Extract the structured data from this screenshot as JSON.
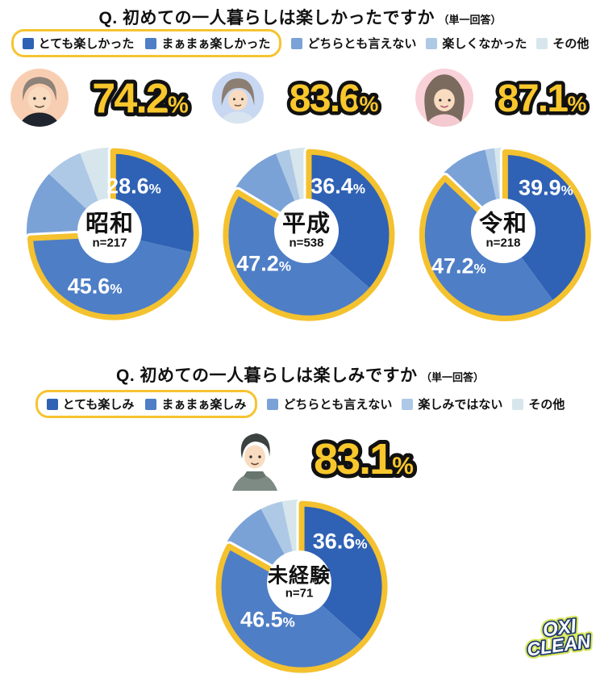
{
  "page": {
    "background": "#ffffff"
  },
  "colors": {
    "slice_colors": [
      "#2F62B5",
      "#4E7EC6",
      "#7AA2D6",
      "#AEC9E6",
      "#D7E6EC"
    ],
    "highlight_ring": "#F4C12F",
    "legend_box_border": "#F5C431",
    "big_percent_fill": "#F9C72C",
    "big_percent_outline": "#111111",
    "slice_label_color": "#FFFFFF",
    "avatar_bg": {
      "showa": "#F8CEB2",
      "heisei": "#C9D8F2",
      "reiwa": "#F9D1D9"
    }
  },
  "section_past": {
    "question": "Q. 初めての一人暮らしは楽しかったですか",
    "answer_type_note": "（単一回答）",
    "legend": [
      "とても楽しかった",
      "まぁまぁ楽しかった",
      "どちらとも言えない",
      "楽しくなかった",
      "その他"
    ]
  },
  "section_future": {
    "question": "Q. 初めての一人暮らしは楽しみですか",
    "answer_type_note": "（単一回答）",
    "legend": [
      "とても楽しみ",
      "まぁまぁ楽しみ",
      "どちらとも言えない",
      "楽しみではない",
      "その他"
    ]
  },
  "chart_data": [
    {
      "type": "pie",
      "group": "昭和",
      "sample_label": "n=217",
      "highlight_total": {
        "num": "74.2",
        "sign": "%"
      },
      "categories": [
        "とても楽しかった",
        "まぁまぁ楽しかった",
        "どちらとも言えない",
        "楽しくなかった",
        "その他"
      ],
      "values_pct": [
        28.6,
        45.6,
        12.8,
        7.2,
        5.8
      ],
      "value_is_estimated": [
        false,
        false,
        true,
        true,
        true
      ],
      "labels": {
        "a": {
          "num": "28.6",
          "sign": "%"
        },
        "b": {
          "num": "45.6",
          "sign": "%"
        }
      },
      "highlight_slices": [
        0,
        1
      ],
      "start_angle_deg": 0,
      "direction": "clockwise",
      "legend_position": "top"
    },
    {
      "type": "pie",
      "group": "平成",
      "sample_label": "n=538",
      "highlight_total": {
        "num": "83.6",
        "sign": "%"
      },
      "categories": [
        "とても楽しかった",
        "まぁまぁ楽しかった",
        "どちらとも言えない",
        "楽しくなかった",
        "その他"
      ],
      "values_pct": [
        36.4,
        47.2,
        10.4,
        2.7,
        3.3
      ],
      "value_is_estimated": [
        false,
        false,
        true,
        true,
        true
      ],
      "labels": {
        "a": {
          "num": "36.4",
          "sign": "%"
        },
        "b": {
          "num": "47.2",
          "sign": "%"
        }
      },
      "highlight_slices": [
        0,
        1
      ],
      "start_angle_deg": 0,
      "direction": "clockwise",
      "legend_position": "top"
    },
    {
      "type": "pie",
      "group": "令和",
      "sample_label": "n=218",
      "highlight_total": {
        "num": "87.1",
        "sign": "%"
      },
      "categories": [
        "とても楽しかった",
        "まぁまぁ楽しかった",
        "どちらとも言えない",
        "楽しくなかった",
        "その他"
      ],
      "values_pct": [
        39.9,
        47.2,
        9.4,
        1.8,
        1.7
      ],
      "value_is_estimated": [
        false,
        false,
        true,
        true,
        true
      ],
      "labels": {
        "a": {
          "num": "39.9",
          "sign": "%"
        },
        "b": {
          "num": "47.2",
          "sign": "%"
        }
      },
      "highlight_slices": [
        0,
        1
      ],
      "start_angle_deg": 0,
      "direction": "clockwise",
      "legend_position": "top"
    },
    {
      "type": "pie",
      "group": "未経験",
      "sample_label": "n=71",
      "highlight_total": {
        "num": "83.1",
        "sign": "%"
      },
      "categories": [
        "とても楽しみ",
        "まぁまぁ楽しみ",
        "どちらとも言えない",
        "楽しみではない",
        "その他"
      ],
      "values_pct": [
        36.6,
        46.5,
        9.3,
        4.3,
        3.3
      ],
      "value_is_estimated": [
        false,
        false,
        true,
        true,
        true
      ],
      "labels": {
        "a": {
          "num": "36.6",
          "sign": "%"
        },
        "b": {
          "num": "46.5",
          "sign": "%"
        }
      },
      "highlight_slices": [
        0,
        1
      ],
      "start_angle_deg": 0,
      "direction": "clockwise",
      "legend_position": "top"
    }
  ],
  "brand": {
    "line1": "OXI",
    "line2": "CLEAN"
  }
}
